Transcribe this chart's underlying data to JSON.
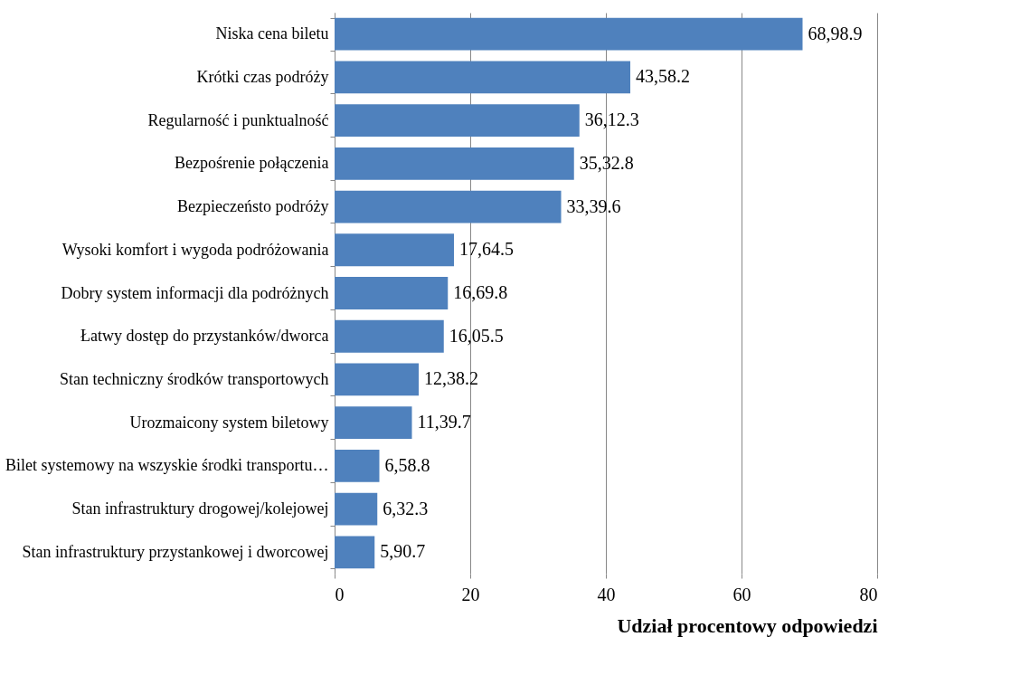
{
  "chart_data": {
    "type": "bar",
    "orientation": "horizontal",
    "xlabel": "Udział procentowy odpowiedzi",
    "categories": [
      "Niska cena biletu",
      "Krótki czas podróży",
      "Regularność i punktualność",
      "Bezpośrenie połączenia",
      "Bezpieczeństo podróży",
      "Wysoki komfort i wygoda podróżowania",
      "Dobry system informacji dla podróżnych",
      "Łatwy dostęp do przystanków/dworca",
      "Stan techniczny środków transportowych",
      "Urozmaicony system biletowy",
      "Bilet systemowy na wszyskie środki transportu…",
      "Stan infrastruktury drogowej/kolejowej",
      "Stan infrastruktury przystankowej i dworcowej"
    ],
    "values": [
      69.0,
      43.6,
      36.1,
      35.3,
      33.4,
      17.6,
      16.7,
      16.1,
      12.4,
      11.4,
      6.6,
      6.3,
      5.9
    ],
    "value_labels": [
      "68,98.9",
      "43,58.2",
      "36,12.3",
      "35,32.8",
      "33,39.6",
      "17,64.5",
      "16,69.8",
      "16,05.5",
      "12,38.2",
      "11,39.7",
      "6,58.8",
      "6,32.3",
      "5,90.7"
    ],
    "color": "#4f81bd",
    "xlim": [
      0,
      80
    ],
    "xticks": [
      0,
      20,
      40,
      60,
      80
    ],
    "grid": "x"
  }
}
